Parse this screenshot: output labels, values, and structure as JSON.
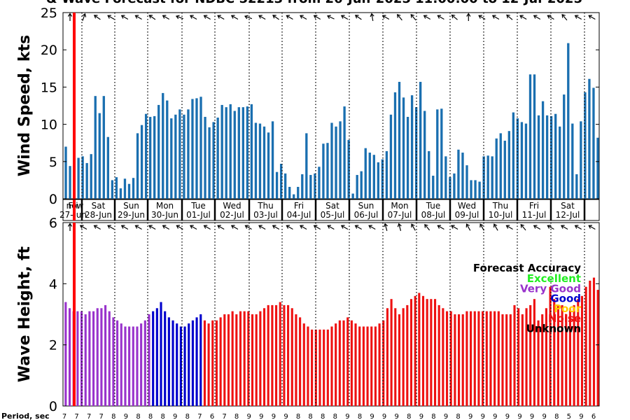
{
  "title": "& Wave Forecast for NDBC 52213 from 26-Jun-2025 11:00:00 to 12-Jul-2025",
  "chart_data": [
    {
      "type": "bar",
      "panel": "wind",
      "ylabel": "Wind Speed, kts",
      "ylim": [
        0,
        25
      ],
      "yticks": [
        "0",
        "5",
        "10",
        "15",
        "20",
        "25"
      ],
      "bar_color": "#1a6fb0",
      "values": [
        7.0,
        4.4,
        2.9,
        5.5,
        5.7,
        4.8,
        6.0,
        13.8,
        11.5,
        13.8,
        8.3,
        2.5,
        2.9,
        1.4,
        2.7,
        2.0,
        2.8,
        8.8,
        9.9,
        11.4,
        11.0,
        11.1,
        12.6,
        14.2,
        13.2,
        10.8,
        11.3,
        12.0,
        11.3,
        12.0,
        13.4,
        13.5,
        13.7,
        11.0,
        9.6,
        10.3,
        10.9,
        12.6,
        12.3,
        12.7,
        11.8,
        12.3,
        12.3,
        12.4,
        12.7,
        10.2,
        10.1,
        9.7,
        8.9,
        10.4,
        3.6,
        4.7,
        3.4,
        1.6,
        0.6,
        1.6,
        3.3,
        8.8,
        3.2,
        3.4,
        4.3,
        7.4,
        7.5,
        10.2,
        9.7,
        10.4,
        12.4,
        7.9,
        0.7,
        3.2,
        3.7,
        6.8,
        6.2,
        5.9,
        4.9,
        5.3,
        6.4,
        11.3,
        14.3,
        15.7,
        13.6,
        11.0,
        13.9,
        12.3,
        15.7,
        11.8,
        6.4,
        3.1,
        12.0,
        12.1,
        5.7,
        2.9,
        3.4,
        6.6,
        6.2,
        4.5,
        2.5,
        2.5,
        2.3,
        5.7,
        5.8,
        5.7,
        8.1,
        8.8,
        7.8,
        9.1,
        11.6,
        10.8,
        10.3,
        10.1,
        16.7,
        16.7,
        11.2,
        13.1,
        11.2,
        11.1,
        11.4,
        9.7,
        14.0,
        20.9,
        10.1,
        3.3,
        10.4,
        14.3,
        16.1,
        14.9,
        8.2
      ],
      "date_labels": [
        {
          "day": "Fri",
          "date": "27-Jun"
        },
        {
          "day": "Sat",
          "date": "28-Jun"
        },
        {
          "day": "Sun",
          "date": "29-Jun"
        },
        {
          "day": "Mon",
          "date": "30-Jun"
        },
        {
          "day": "Tue",
          "date": "01-Jul"
        },
        {
          "day": "Wed",
          "date": "02-Jul"
        },
        {
          "day": "Thu",
          "date": "03-Jul"
        },
        {
          "day": "Fri",
          "date": "04-Jul"
        },
        {
          "day": "Sat",
          "date": "05-Jul"
        },
        {
          "day": "Sun",
          "date": "06-Jul"
        },
        {
          "day": "Mon",
          "date": "07-Jul"
        },
        {
          "day": "Tue",
          "date": "08-Jul"
        },
        {
          "day": "Wed",
          "date": "09-Jul"
        },
        {
          "day": "Thu",
          "date": "10-Jul"
        },
        {
          "day": "Fri",
          "date": "11-Jul"
        },
        {
          "day": "Sat",
          "date": "12-Jul"
        }
      ],
      "now_label": "now",
      "direction_arrows_deg": [
        0,
        20,
        305,
        300,
        300,
        300,
        305,
        300,
        290,
        300,
        300,
        300,
        300,
        290,
        300,
        305,
        300,
        300,
        300,
        295,
        300,
        305,
        350,
        300,
        320,
        320,
        300,
        300,
        310,
        0,
        300,
        300,
        310,
        300,
        300,
        300,
        320,
        300,
        300
      ]
    },
    {
      "type": "bar",
      "panel": "wave",
      "ylabel": "Wave Height, ft",
      "ylim": [
        0,
        6
      ],
      "yticks": [
        "0",
        "2",
        "4",
        "6"
      ],
      "values": [
        3.4,
        3.2,
        3.1,
        3.1,
        3.1,
        3.0,
        3.1,
        3.1,
        3.2,
        3.2,
        3.3,
        3.1,
        2.9,
        2.8,
        2.7,
        2.6,
        2.6,
        2.6,
        2.6,
        2.7,
        2.8,
        3.0,
        3.1,
        3.2,
        3.4,
        3.1,
        2.9,
        2.8,
        2.7,
        2.6,
        2.6,
        2.7,
        2.8,
        2.9,
        3.0,
        2.8,
        2.7,
        2.8,
        2.8,
        2.9,
        3.0,
        3.0,
        3.1,
        3.0,
        3.1,
        3.1,
        3.1,
        3.0,
        3.0,
        3.1,
        3.2,
        3.3,
        3.3,
        3.3,
        3.4,
        3.3,
        3.3,
        3.2,
        3.0,
        2.9,
        2.7,
        2.6,
        2.5,
        2.5,
        2.5,
        2.5,
        2.5,
        2.6,
        2.7,
        2.8,
        2.8,
        2.9,
        2.8,
        2.7,
        2.6,
        2.6,
        2.6,
        2.6,
        2.6,
        2.7,
        2.8,
        3.2,
        3.5,
        3.2,
        3.0,
        3.2,
        3.3,
        3.5,
        3.6,
        3.7,
        3.6,
        3.5,
        3.5,
        3.5,
        3.3,
        3.2,
        3.1,
        3.1,
        3.0,
        3.0,
        3.0,
        3.1,
        3.1,
        3.1,
        3.1,
        3.1,
        3.1,
        3.1,
        3.1,
        3.1,
        3.0,
        3.0,
        3.0,
        3.3,
        3.2,
        3.0,
        3.2,
        3.3,
        3.5,
        2.8,
        3.0,
        3.2,
        3.9,
        3.5,
        3.3,
        3.3,
        3.0,
        3.2,
        3.3,
        3.5,
        3.6,
        3.9,
        4.1,
        4.2,
        3.8
      ],
      "segment_colors": [
        {
          "from": 0,
          "to": 22,
          "color": "#9933cc"
        },
        {
          "from": 22,
          "to": 35,
          "color": "#0000cc"
        },
        {
          "from": 35,
          "to": 136,
          "color": "#ee1111"
        }
      ],
      "direction_arrows_deg": [
        0,
        300,
        300,
        300,
        300,
        300,
        300,
        300,
        300,
        300,
        300,
        300,
        300,
        300,
        300,
        300,
        300,
        300,
        300,
        300,
        300,
        300,
        300,
        345,
        345,
        330,
        320,
        300,
        300,
        330,
        330,
        330,
        300,
        320,
        300,
        300,
        300,
        300,
        300
      ],
      "legend": {
        "title": "Forecast Accuracy",
        "placement": "right",
        "items": [
          {
            "label": "Excellent",
            "color": "#22ee22"
          },
          {
            "label": "Very Good",
            "color": "#9933cc"
          },
          {
            "label": "Good",
            "color": "#0000cc"
          },
          {
            "label": "Poor",
            "color": "#ffcc00"
          },
          {
            "label": "Noise",
            "color": "#ee1111"
          },
          {
            "label": "Unknown",
            "color": "#000000"
          }
        ]
      },
      "period": {
        "label": "Period, sec",
        "values": [
          "7",
          "7",
          "7",
          "7",
          "8",
          "9",
          "8",
          "8",
          "8",
          "9",
          "8",
          "7",
          "6",
          "7",
          "8",
          "9",
          "9",
          "9",
          "9",
          "8",
          "8",
          "8",
          "8",
          "9",
          "8",
          "9",
          "9",
          "9",
          "8",
          "9",
          "8",
          "9",
          "8",
          "9",
          "9",
          "9",
          "9",
          "9",
          "9",
          "9",
          "8",
          "5",
          "9",
          "6"
        ]
      }
    }
  ]
}
